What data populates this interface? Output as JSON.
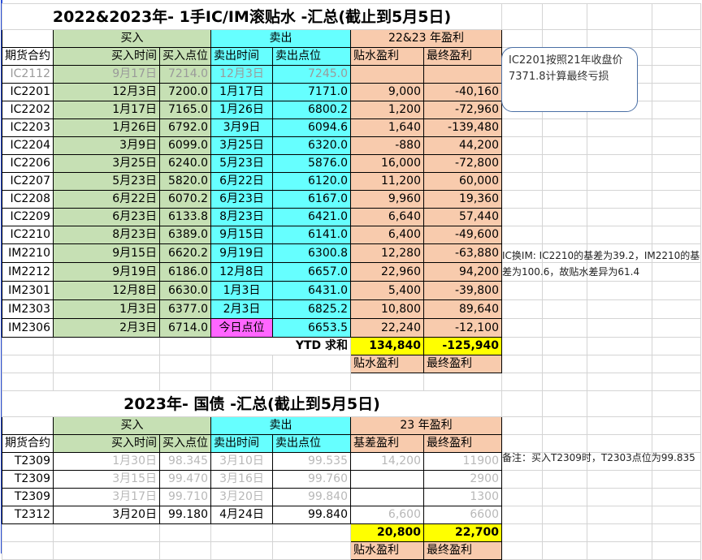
{
  "section1": {
    "title": "2022&2023年- 1手IC/IM滚贴水 -汇总(截止到5月5日)",
    "group_headers": {
      "buy": "买入",
      "sell": "卖出",
      "profit": "22&23 年盈利"
    },
    "columns": [
      "期货合约",
      "买入时间",
      "买入点位",
      "卖出时间",
      "卖出点位",
      "贴水盈利",
      "最终盈利"
    ],
    "rows": [
      {
        "contract": "IC2112",
        "buy_date": "9月17日",
        "buy_price": "7214.0",
        "sell_date": "12月3日",
        "sell_price": "7245.0",
        "discount_profit": "",
        "final_profit": "",
        "faded": true
      },
      {
        "contract": "IC2201",
        "buy_date": "12月3日",
        "buy_price": "7200.0",
        "sell_date": "1月17日",
        "sell_price": "7171.0",
        "discount_profit": "9,000",
        "final_profit": "-40,160"
      },
      {
        "contract": "IC2202",
        "buy_date": "1月17日",
        "buy_price": "7165.0",
        "sell_date": "1月26日",
        "sell_price": "6800.2",
        "discount_profit": "1,200",
        "final_profit": "-72,960"
      },
      {
        "contract": "IC2203",
        "buy_date": "1月26日",
        "buy_price": "6792.0",
        "sell_date": "3月9日",
        "sell_price": "6094.6",
        "discount_profit": "1,640",
        "final_profit": "-139,480"
      },
      {
        "contract": "IC2204",
        "buy_date": "3月9日",
        "buy_price": "6099.0",
        "sell_date": "3月25日",
        "sell_price": "6320.0",
        "discount_profit": "-880",
        "final_profit": "44,200"
      },
      {
        "contract": "IC2206",
        "buy_date": "3月25日",
        "buy_price": "6240.0",
        "sell_date": "5月23日",
        "sell_price": "5876.0",
        "discount_profit": "16,000",
        "final_profit": "-72,800"
      },
      {
        "contract": "IC2207",
        "buy_date": "5月23日",
        "buy_price": "5820.0",
        "sell_date": "6月22日",
        "sell_price": "6120.0",
        "discount_profit": "11,200",
        "final_profit": "60,000"
      },
      {
        "contract": "IC2208",
        "buy_date": "6月22日",
        "buy_price": "6070.2",
        "sell_date": "6月23日",
        "sell_price": "6167.0",
        "discount_profit": "9,960",
        "final_profit": "19,360"
      },
      {
        "contract": "IC2209",
        "buy_date": "6月23日",
        "buy_price": "6133.8",
        "sell_date": "8月23日",
        "sell_price": "6421.0",
        "discount_profit": "6,640",
        "final_profit": "57,440"
      },
      {
        "contract": "IC2210",
        "buy_date": "8月23日",
        "buy_price": "6389.0",
        "sell_date": "9月15日",
        "sell_price": "6141.0",
        "discount_profit": "6,400",
        "final_profit": "-49,600"
      },
      {
        "contract": "IM2210",
        "buy_date": "9月15日",
        "buy_price": "6620.2",
        "sell_date": "9月19日",
        "sell_price": "6300.8",
        "discount_profit": "12,280",
        "final_profit": "-63,880"
      },
      {
        "contract": "IM2212",
        "buy_date": "9月19日",
        "buy_price": "6186.0",
        "sell_date": "12月8日",
        "sell_price": "6657.0",
        "discount_profit": "22,960",
        "final_profit": "94,200"
      },
      {
        "contract": "IM2301",
        "buy_date": "12月8日",
        "buy_price": "6630.0",
        "sell_date": "1月3日",
        "sell_price": "6431.0",
        "discount_profit": "5,400",
        "final_profit": "-39,800"
      },
      {
        "contract": "IM2303",
        "buy_date": "1月3日",
        "buy_price": "6377.0",
        "sell_date": "2月3日",
        "sell_price": "6825.2",
        "discount_profit": "10,800",
        "final_profit": "89,640"
      },
      {
        "contract": "IM2306",
        "buy_date": "2月3日",
        "buy_price": "6714.0",
        "sell_date": "今日点位",
        "sell_price": "6653.5",
        "discount_profit": "22,240",
        "final_profit": "-12,100",
        "highlight_sell_date": true
      }
    ],
    "total_label": "YTD 求和",
    "total_discount": "134,840",
    "total_final": "-125,940",
    "footer_labels": [
      "贴水盈利",
      "最终盈利"
    ],
    "callout": "IC2201按照21年收盘价7371.8计算最终亏损",
    "note": "IC换IM: IC2210的基差为39.2，IM2210的基差为100.6，故贴水差异为61.4"
  },
  "section2": {
    "title": "2023年- 国债 -汇总(截止到5月5日)",
    "group_headers": {
      "buy": "买入",
      "sell": "卖出",
      "profit": "23 年盈利"
    },
    "columns": [
      "期货合约",
      "买入时间",
      "买入点位",
      "卖出时间",
      "卖出点位",
      "基差盈利",
      "最终盈利"
    ],
    "rows": [
      {
        "contract": "T2309",
        "buy_date": "1月30日",
        "buy_price": "98.345",
        "sell_date": "3月10日",
        "sell_price": "99.535",
        "discount_profit": "14,200",
        "final_profit": "11900",
        "faded": true
      },
      {
        "contract": "T2309",
        "buy_date": "3月15日",
        "buy_price": "99.470",
        "sell_date": "3月16日",
        "sell_price": "99.760",
        "discount_profit": "",
        "final_profit": "2900",
        "faded": true
      },
      {
        "contract": "T2309",
        "buy_date": "3月17日",
        "buy_price": "99.710",
        "sell_date": "3月20日",
        "sell_price": "99.840",
        "discount_profit": "",
        "final_profit": "1300",
        "faded": true
      },
      {
        "contract": "T2312",
        "buy_date": "3月20日",
        "buy_price": "99.180",
        "sell_date": "4月24日",
        "sell_price": "99.840",
        "discount_profit": "6,600",
        "final_profit": "6600",
        "faded_profit": true
      }
    ],
    "total_discount": "20,800",
    "total_final": "22,700",
    "footer_labels": [
      "贴水盈利",
      "最终盈利"
    ],
    "note": "备注：买入T2309时，T2303点位为99.835"
  },
  "colors": {
    "buy": "#c6e0b4",
    "sell": "#66ffff",
    "profit": "#f8cbad",
    "total": "#ffff00",
    "today": "#ff66ff"
  }
}
